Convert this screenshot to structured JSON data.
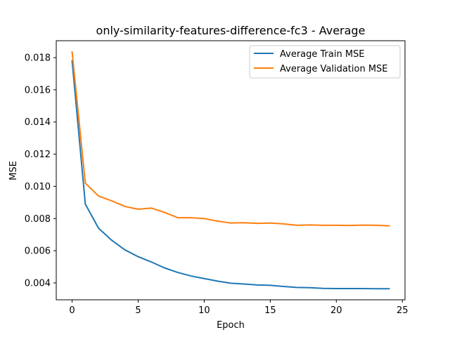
{
  "chart_data": {
    "type": "line",
    "title": "only-similarity-features-difference-fc3 - Average",
    "xlabel": "Epoch",
    "ylabel": "MSE",
    "xlim": [
      -1.2,
      25.2
    ],
    "ylim": [
      0.00295,
      0.01905
    ],
    "xticks": [
      0,
      5,
      10,
      15,
      20,
      25
    ],
    "xtick_labels": [
      "0",
      "5",
      "10",
      "15",
      "20",
      "25"
    ],
    "yticks": [
      0.004,
      0.006,
      0.008,
      0.01,
      0.012,
      0.014,
      0.016,
      0.018
    ],
    "ytick_labels": [
      "0.004",
      "0.006",
      "0.008",
      "0.010",
      "0.012",
      "0.014",
      "0.016",
      "0.018"
    ],
    "grid": false,
    "legend_position": "top-right",
    "x": [
      0,
      1,
      2,
      3,
      4,
      5,
      6,
      7,
      8,
      9,
      10,
      11,
      12,
      13,
      14,
      15,
      16,
      17,
      18,
      19,
      20,
      21,
      22,
      23,
      24
    ],
    "series": [
      {
        "name": "Average Train MSE",
        "color": "#1f77b4",
        "values": [
          0.0178,
          0.0089,
          0.0074,
          0.00665,
          0.00605,
          0.00563,
          0.0053,
          0.00493,
          0.00465,
          0.00443,
          0.00427,
          0.00411,
          0.00398,
          0.00393,
          0.00387,
          0.00385,
          0.00378,
          0.00372,
          0.0037,
          0.00366,
          0.00365,
          0.00365,
          0.00365,
          0.00364,
          0.00364
        ]
      },
      {
        "name": "Average Validation MSE",
        "color": "#ff7f0e",
        "values": [
          0.01835,
          0.0102,
          0.0094,
          0.0091,
          0.00875,
          0.00858,
          0.00865,
          0.00838,
          0.00805,
          0.00805,
          0.008,
          0.00784,
          0.00772,
          0.00774,
          0.0077,
          0.00772,
          0.00767,
          0.00758,
          0.0076,
          0.00758,
          0.00758,
          0.00757,
          0.00759,
          0.00758,
          0.00755
        ]
      }
    ]
  }
}
